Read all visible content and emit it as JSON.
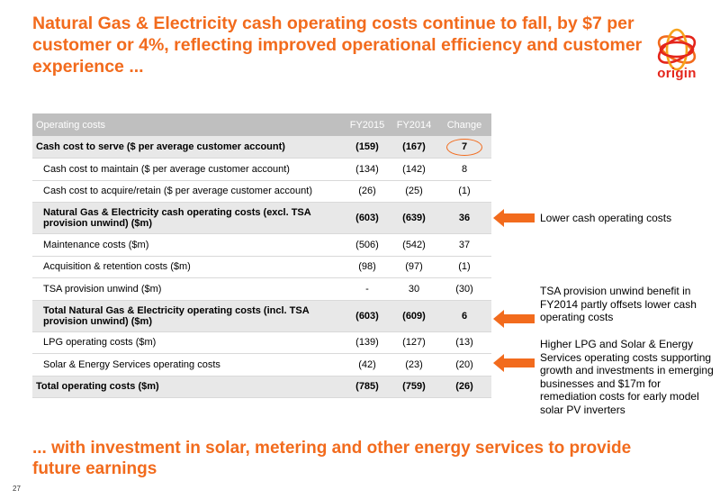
{
  "title": "Natural Gas & Electricity cash operating costs continue to fall, by $7 per customer or 4%, reflecting improved operational efficiency and customer experience ...",
  "logo": {
    "text": "origin",
    "brand_orange": "#f26b1d",
    "brand_red": "#e4251b"
  },
  "table": {
    "headers": [
      "Operating costs",
      "FY2015",
      "FY2014",
      "Change"
    ],
    "rows": [
      {
        "label": "Cash cost to serve ($ per average customer account)",
        "fy2015": "(159)",
        "fy2014": "(167)",
        "change": "7"
      },
      {
        "label": "Cash cost to maintain ($ per average customer account)",
        "fy2015": "(134)",
        "fy2014": "(142)",
        "change": "8"
      },
      {
        "label": "Cash cost to acquire/retain ($ per average customer account)",
        "fy2015": "(26)",
        "fy2014": "(25)",
        "change": "(1)"
      },
      {
        "label": "Natural Gas & Electricity cash operating costs (excl. TSA provision unwind) ($m)",
        "fy2015": "(603)",
        "fy2014": "(639)",
        "change": "36"
      },
      {
        "label": "Maintenance costs ($m)",
        "fy2015": "(506)",
        "fy2014": "(542)",
        "change": "37"
      },
      {
        "label": "Acquisition & retention costs ($m)",
        "fy2015": "(98)",
        "fy2014": "(97)",
        "change": "(1)"
      },
      {
        "label": "TSA provision unwind ($m)",
        "fy2015": "-",
        "fy2014": "30",
        "change": "(30)"
      },
      {
        "label": "Total Natural Gas & Electricity operating costs (incl. TSA provision unwind) ($m)",
        "fy2015": "(603)",
        "fy2014": "(609)",
        "change": "6"
      },
      {
        "label": "LPG operating costs ($m)",
        "fy2015": "(139)",
        "fy2014": "(127)",
        "change": "(13)"
      },
      {
        "label": "Solar & Energy Services operating costs",
        "fy2015": "(42)",
        "fy2014": "(23)",
        "change": "(20)"
      },
      {
        "label": "Total operating costs ($m)",
        "fy2015": "(785)",
        "fy2014": "(759)",
        "change": "(26)"
      }
    ]
  },
  "notes": [
    "Lower cash operating costs",
    "TSA provision unwind benefit in FY2014 partly offsets lower cash operating costs",
    "Higher LPG and Solar & Energy Services operating costs supporting growth and investments in emerging businesses and $17m for remediation costs for early model solar PV inverters"
  ],
  "footer_title": "... with investment in solar, metering and other energy services to provide future earnings",
  "page_number": "27"
}
